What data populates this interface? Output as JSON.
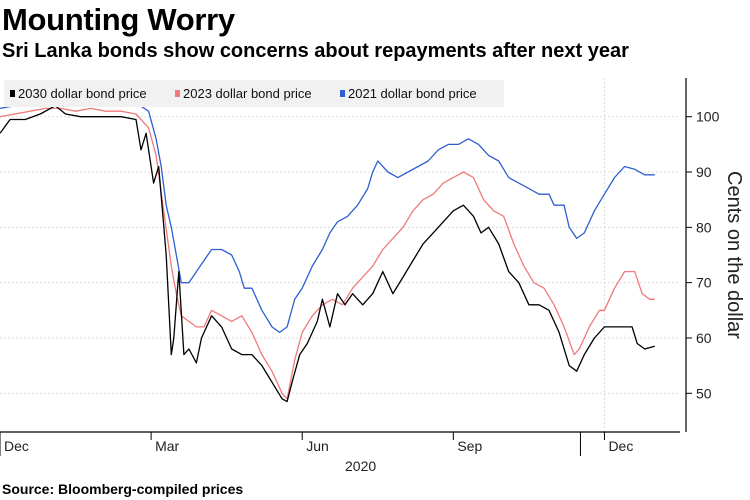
{
  "title": "Mounting Worry",
  "subtitle": "Sri Lanka bonds show concerns about repayments after next year",
  "source": "Source: Bloomberg-compiled prices",
  "chart_data": {
    "type": "line",
    "ylabel": "Cents on the dollar",
    "ylim": [
      43,
      107
    ],
    "yticks": [
      "100",
      "90",
      "80",
      "70",
      "60",
      "50"
    ],
    "xlim": [
      0,
      13.5
    ],
    "xticks": [
      {
        "label": "Dec",
        "x": 0
      },
      {
        "label": "Mar",
        "x": 3
      },
      {
        "label": "Jun",
        "x": 6
      },
      {
        "label": "Sep",
        "x": 9
      },
      {
        "label": "Dec",
        "x": 12
      }
    ],
    "year_label": "2020",
    "year_x": 7,
    "series": [
      {
        "name": "2030 dollar bond price",
        "color": "#000000",
        "points": [
          [
            0,
            97
          ],
          [
            0.2,
            99.5
          ],
          [
            0.5,
            99.5
          ],
          [
            0.8,
            100.5
          ],
          [
            1.1,
            102
          ],
          [
            1.3,
            100.5
          ],
          [
            1.6,
            100
          ],
          [
            2,
            100
          ],
          [
            2.4,
            100
          ],
          [
            2.7,
            99.5
          ],
          [
            2.8,
            94
          ],
          [
            2.9,
            97
          ],
          [
            3.05,
            88
          ],
          [
            3.15,
            91
          ],
          [
            3.3,
            75
          ],
          [
            3.4,
            57
          ],
          [
            3.45,
            60
          ],
          [
            3.55,
            72
          ],
          [
            3.65,
            57
          ],
          [
            3.75,
            58
          ],
          [
            3.9,
            55.5
          ],
          [
            4.0,
            60
          ],
          [
            4.2,
            64
          ],
          [
            4.4,
            62
          ],
          [
            4.6,
            58
          ],
          [
            4.8,
            57
          ],
          [
            5.0,
            57
          ],
          [
            5.2,
            55
          ],
          [
            5.4,
            52
          ],
          [
            5.6,
            49
          ],
          [
            5.7,
            48.5
          ],
          [
            5.8,
            52
          ],
          [
            5.95,
            57
          ],
          [
            6.1,
            59
          ],
          [
            6.3,
            63
          ],
          [
            6.4,
            67
          ],
          [
            6.55,
            62
          ],
          [
            6.7,
            68
          ],
          [
            6.85,
            66
          ],
          [
            7,
            68
          ],
          [
            7.2,
            66
          ],
          [
            7.4,
            68
          ],
          [
            7.6,
            72
          ],
          [
            7.8,
            68
          ],
          [
            8,
            71
          ],
          [
            8.2,
            74
          ],
          [
            8.4,
            77
          ],
          [
            8.6,
            79
          ],
          [
            8.8,
            81
          ],
          [
            9.0,
            83
          ],
          [
            9.2,
            84
          ],
          [
            9.4,
            82
          ],
          [
            9.55,
            79
          ],
          [
            9.7,
            80
          ],
          [
            9.9,
            77
          ],
          [
            10.1,
            72
          ],
          [
            10.3,
            70
          ],
          [
            10.5,
            66
          ],
          [
            10.7,
            66
          ],
          [
            10.9,
            65
          ],
          [
            11.1,
            61
          ],
          [
            11.3,
            55
          ],
          [
            11.45,
            54
          ],
          [
            11.6,
            57
          ],
          [
            11.8,
            60
          ],
          [
            12.0,
            62
          ],
          [
            12.2,
            62
          ],
          [
            12.4,
            62
          ],
          [
            12.55,
            62
          ],
          [
            12.65,
            59
          ],
          [
            12.8,
            58
          ],
          [
            13.0,
            58.5
          ]
        ]
      },
      {
        "name": "2023 dollar bond price",
        "color": "#f07a7a",
        "points": [
          [
            0,
            100
          ],
          [
            0.3,
            100.5
          ],
          [
            0.6,
            101
          ],
          [
            0.9,
            101.5
          ],
          [
            1.2,
            101.5
          ],
          [
            1.5,
            101
          ],
          [
            1.8,
            101.5
          ],
          [
            2.1,
            101
          ],
          [
            2.4,
            101
          ],
          [
            2.7,
            100.5
          ],
          [
            2.95,
            98
          ],
          [
            3.1,
            93
          ],
          [
            3.25,
            83
          ],
          [
            3.4,
            73
          ],
          [
            3.5,
            68
          ],
          [
            3.6,
            64
          ],
          [
            3.75,
            63
          ],
          [
            3.9,
            62
          ],
          [
            4.05,
            62
          ],
          [
            4.2,
            65
          ],
          [
            4.4,
            64
          ],
          [
            4.6,
            63
          ],
          [
            4.8,
            64
          ],
          [
            5.0,
            61
          ],
          [
            5.2,
            57
          ],
          [
            5.4,
            54
          ],
          [
            5.6,
            50
          ],
          [
            5.7,
            49
          ],
          [
            5.85,
            56
          ],
          [
            6.0,
            61
          ],
          [
            6.2,
            64
          ],
          [
            6.4,
            66
          ],
          [
            6.6,
            67
          ],
          [
            6.8,
            66
          ],
          [
            7.0,
            69
          ],
          [
            7.2,
            71
          ],
          [
            7.4,
            73
          ],
          [
            7.6,
            76
          ],
          [
            7.8,
            78
          ],
          [
            8.0,
            80
          ],
          [
            8.2,
            83
          ],
          [
            8.4,
            85
          ],
          [
            8.6,
            86
          ],
          [
            8.8,
            88
          ],
          [
            9.0,
            89
          ],
          [
            9.2,
            90
          ],
          [
            9.4,
            89
          ],
          [
            9.6,
            85
          ],
          [
            9.8,
            83
          ],
          [
            10.0,
            82
          ],
          [
            10.2,
            77
          ],
          [
            10.4,
            73
          ],
          [
            10.6,
            70
          ],
          [
            10.8,
            69
          ],
          [
            11.0,
            66
          ],
          [
            11.2,
            62
          ],
          [
            11.4,
            57
          ],
          [
            11.5,
            58
          ],
          [
            11.7,
            62
          ],
          [
            11.9,
            65
          ],
          [
            12.0,
            65
          ],
          [
            12.2,
            69
          ],
          [
            12.4,
            72
          ],
          [
            12.6,
            72
          ],
          [
            12.75,
            68
          ],
          [
            12.9,
            67
          ],
          [
            13.0,
            67
          ]
        ]
      },
      {
        "name": "2021 dollar bond price",
        "color": "#2f5fd0",
        "points": [
          [
            0,
            101.5
          ],
          [
            0.3,
            102
          ],
          [
            0.6,
            102
          ],
          [
            0.9,
            102.5
          ],
          [
            1.2,
            102.5
          ],
          [
            1.5,
            102.5
          ],
          [
            1.8,
            102.5
          ],
          [
            2.1,
            103
          ],
          [
            2.4,
            103
          ],
          [
            2.7,
            102.5
          ],
          [
            2.95,
            101
          ],
          [
            3.1,
            96
          ],
          [
            3.2,
            91
          ],
          [
            3.3,
            84
          ],
          [
            3.4,
            80
          ],
          [
            3.5,
            75
          ],
          [
            3.6,
            70
          ],
          [
            3.75,
            70
          ],
          [
            3.9,
            72
          ],
          [
            4.05,
            74
          ],
          [
            4.2,
            76
          ],
          [
            4.4,
            76
          ],
          [
            4.6,
            75
          ],
          [
            4.75,
            72
          ],
          [
            4.85,
            69
          ],
          [
            5.0,
            69
          ],
          [
            5.2,
            65
          ],
          [
            5.4,
            62
          ],
          [
            5.55,
            61
          ],
          [
            5.7,
            62
          ],
          [
            5.85,
            67
          ],
          [
            6.0,
            69
          ],
          [
            6.2,
            73
          ],
          [
            6.4,
            76
          ],
          [
            6.55,
            79
          ],
          [
            6.7,
            81
          ],
          [
            6.9,
            82
          ],
          [
            7.1,
            84
          ],
          [
            7.3,
            87
          ],
          [
            7.4,
            90
          ],
          [
            7.5,
            92
          ],
          [
            7.7,
            90
          ],
          [
            7.9,
            89
          ],
          [
            8.1,
            90
          ],
          [
            8.3,
            91
          ],
          [
            8.5,
            92
          ],
          [
            8.7,
            94
          ],
          [
            8.9,
            95
          ],
          [
            9.1,
            95
          ],
          [
            9.3,
            96
          ],
          [
            9.5,
            95
          ],
          [
            9.7,
            93
          ],
          [
            9.9,
            92
          ],
          [
            10.1,
            89
          ],
          [
            10.3,
            88
          ],
          [
            10.5,
            87
          ],
          [
            10.7,
            86
          ],
          [
            10.9,
            86
          ],
          [
            11.0,
            84
          ],
          [
            11.2,
            84
          ],
          [
            11.3,
            80
          ],
          [
            11.45,
            78
          ],
          [
            11.6,
            79
          ],
          [
            11.8,
            83
          ],
          [
            12.0,
            86
          ],
          [
            12.2,
            89
          ],
          [
            12.4,
            91
          ],
          [
            12.6,
            90.5
          ],
          [
            12.8,
            89.5
          ],
          [
            13.0,
            89.5
          ]
        ]
      }
    ]
  }
}
